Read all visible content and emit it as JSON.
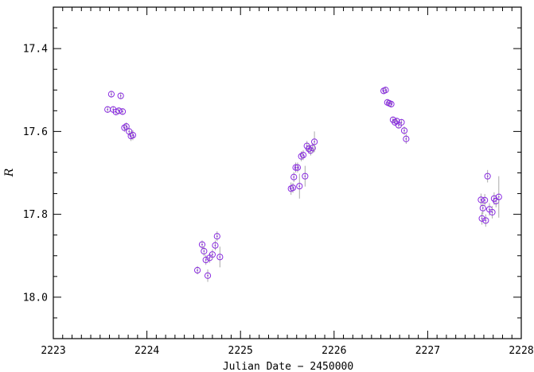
{
  "chart_data": {
    "type": "scatter",
    "title": "",
    "xlabel": "Julian Date − 2450000",
    "ylabel": "R",
    "xlim": [
      2223,
      2228
    ],
    "ylim": [
      18.1,
      17.3
    ],
    "y_inverted": true,
    "grid": false,
    "x_major_ticks": [
      2223,
      2224,
      2225,
      2226,
      2227,
      2228
    ],
    "x_tick_labels": [
      "2223",
      "2224",
      "2225",
      "2226",
      "2227",
      "2228"
    ],
    "y_major_ticks": [
      17.4,
      17.6,
      17.8,
      18.0
    ],
    "y_tick_labels": [
      "17.4",
      "17.6",
      "17.8",
      "18.0"
    ],
    "x_minor_step": 0.1,
    "y_minor_step": 0.05,
    "colors": {
      "marker": "#8a2be2",
      "errorbar": "#aaaaaa",
      "axes": "#000000"
    },
    "series": [
      {
        "marker": "open-circle-with-dot",
        "points": [
          {
            "x": 2223.58,
            "y": 17.547,
            "err": 0.008
          },
          {
            "x": 2223.62,
            "y": 17.51,
            "err": 0.008
          },
          {
            "x": 2223.64,
            "y": 17.547,
            "err": 0.008
          },
          {
            "x": 2223.67,
            "y": 17.553,
            "err": 0.008
          },
          {
            "x": 2223.7,
            "y": 17.55,
            "err": 0.008
          },
          {
            "x": 2223.72,
            "y": 17.514,
            "err": 0.008
          },
          {
            "x": 2223.74,
            "y": 17.552,
            "err": 0.008
          },
          {
            "x": 2223.76,
            "y": 17.591,
            "err": 0.01
          },
          {
            "x": 2223.78,
            "y": 17.588,
            "err": 0.01
          },
          {
            "x": 2223.81,
            "y": 17.6,
            "err": 0.01
          },
          {
            "x": 2223.83,
            "y": 17.611,
            "err": 0.012
          },
          {
            "x": 2223.85,
            "y": 17.609,
            "err": 0.012
          },
          {
            "x": 2224.54,
            "y": 17.935,
            "err": 0.01
          },
          {
            "x": 2224.59,
            "y": 17.873,
            "err": 0.01
          },
          {
            "x": 2224.61,
            "y": 17.889,
            "err": 0.012
          },
          {
            "x": 2224.63,
            "y": 17.91,
            "err": 0.012
          },
          {
            "x": 2224.65,
            "y": 17.948,
            "err": 0.015
          },
          {
            "x": 2224.67,
            "y": 17.905,
            "err": 0.012
          },
          {
            "x": 2224.7,
            "y": 17.897,
            "err": 0.012
          },
          {
            "x": 2224.73,
            "y": 17.875,
            "err": 0.012
          },
          {
            "x": 2224.75,
            "y": 17.853,
            "err": 0.012
          },
          {
            "x": 2224.78,
            "y": 17.903,
            "err": 0.025
          },
          {
            "x": 2225.54,
            "y": 17.738,
            "err": 0.015
          },
          {
            "x": 2225.56,
            "y": 17.736,
            "err": 0.012
          },
          {
            "x": 2225.57,
            "y": 17.71,
            "err": 0.012
          },
          {
            "x": 2225.59,
            "y": 17.687,
            "err": 0.012
          },
          {
            "x": 2225.61,
            "y": 17.687,
            "err": 0.012
          },
          {
            "x": 2225.63,
            "y": 17.732,
            "err": 0.03
          },
          {
            "x": 2225.65,
            "y": 17.66,
            "err": 0.012
          },
          {
            "x": 2225.67,
            "y": 17.657,
            "err": 0.012
          },
          {
            "x": 2225.69,
            "y": 17.708,
            "err": 0.025
          },
          {
            "x": 2225.71,
            "y": 17.635,
            "err": 0.012
          },
          {
            "x": 2225.73,
            "y": 17.642,
            "err": 0.012
          },
          {
            "x": 2225.75,
            "y": 17.646,
            "err": 0.012
          },
          {
            "x": 2225.77,
            "y": 17.64,
            "err": 0.012
          },
          {
            "x": 2225.79,
            "y": 17.625,
            "err": 0.025
          },
          {
            "x": 2226.53,
            "y": 17.502,
            "err": 0.008
          },
          {
            "x": 2226.55,
            "y": 17.5,
            "err": 0.008
          },
          {
            "x": 2226.57,
            "y": 17.53,
            "err": 0.008
          },
          {
            "x": 2226.59,
            "y": 17.532,
            "err": 0.008
          },
          {
            "x": 2226.61,
            "y": 17.534,
            "err": 0.008
          },
          {
            "x": 2226.63,
            "y": 17.572,
            "err": 0.008
          },
          {
            "x": 2226.65,
            "y": 17.578,
            "err": 0.008
          },
          {
            "x": 2226.67,
            "y": 17.575,
            "err": 0.008
          },
          {
            "x": 2226.69,
            "y": 17.585,
            "err": 0.008
          },
          {
            "x": 2226.72,
            "y": 17.578,
            "err": 0.008
          },
          {
            "x": 2226.75,
            "y": 17.598,
            "err": 0.01
          },
          {
            "x": 2226.77,
            "y": 17.618,
            "err": 0.012
          },
          {
            "x": 2227.57,
            "y": 17.765,
            "err": 0.015
          },
          {
            "x": 2227.58,
            "y": 17.81,
            "err": 0.015
          },
          {
            "x": 2227.59,
            "y": 17.785,
            "err": 0.015
          },
          {
            "x": 2227.61,
            "y": 17.766,
            "err": 0.015
          },
          {
            "x": 2227.62,
            "y": 17.815,
            "err": 0.015
          },
          {
            "x": 2227.64,
            "y": 17.708,
            "err": 0.015
          },
          {
            "x": 2227.66,
            "y": 17.788,
            "err": 0.015
          },
          {
            "x": 2227.69,
            "y": 17.795,
            "err": 0.015
          },
          {
            "x": 2227.71,
            "y": 17.762,
            "err": 0.015
          },
          {
            "x": 2227.73,
            "y": 17.768,
            "err": 0.015
          },
          {
            "x": 2227.76,
            "y": 17.758,
            "err": 0.05
          }
        ]
      }
    ]
  }
}
